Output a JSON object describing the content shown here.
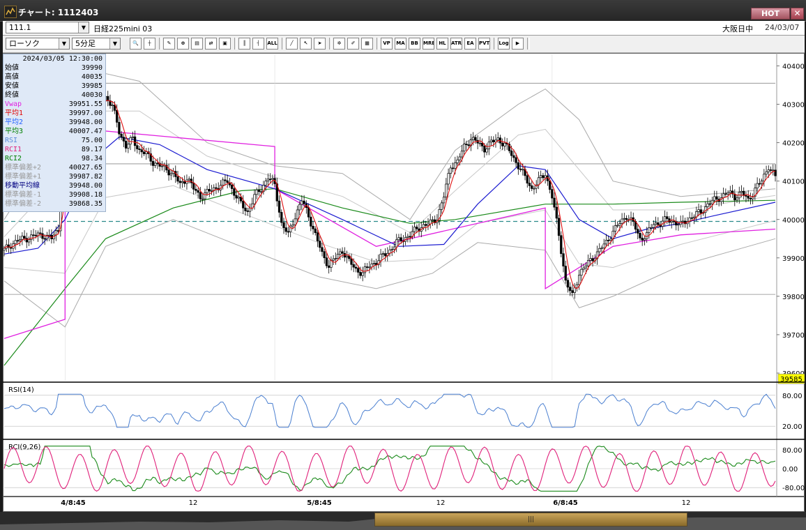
{
  "window": {
    "title": "チャート: 1112403",
    "hot_label": "HOT",
    "close_label": "✕"
  },
  "header": {
    "code": "111.1",
    "instrument": "日経225mini 03",
    "market": "大阪日中",
    "date": "24/03/07",
    "chart_type": "ローソク",
    "interval": "5分足"
  },
  "toolbar": {
    "buttons": [
      {
        "icon": "zoom-icon",
        "label": "🔍"
      },
      {
        "icon": "crosshair-icon",
        "label": "┼"
      },
      {
        "icon": "magnet-draw-icon",
        "label": "✎"
      },
      {
        "icon": "zoom-fit-icon",
        "label": "⊕"
      },
      {
        "icon": "chart-scale-icon",
        "label": "▤"
      },
      {
        "icon": "reset-icon",
        "label": "⇄"
      },
      {
        "icon": "lock-icon",
        "label": "▣"
      },
      {
        "icon": "candle-icon",
        "label": "║"
      },
      {
        "icon": "bar-icon",
        "label": "┤"
      },
      {
        "icon": "all-icon",
        "label": "ALL"
      },
      {
        "icon": "pen-icon",
        "label": "╱"
      },
      {
        "icon": "cursor-icon",
        "label": "↖"
      },
      {
        "icon": "arrow-icon",
        "label": "➤"
      },
      {
        "icon": "settings-icon",
        "label": "✲"
      },
      {
        "icon": "paint-icon",
        "label": "✐"
      },
      {
        "icon": "color-icon",
        "label": "▦"
      },
      {
        "icon": "volume-profile-icon",
        "label": "VP"
      },
      {
        "icon": "ma-icon",
        "label": "MA"
      },
      {
        "icon": "bb-icon",
        "label": "BB"
      },
      {
        "icon": "mre-icon",
        "label": "MRE"
      },
      {
        "icon": "hl-icon",
        "label": "HL"
      },
      {
        "icon": "atr-icon",
        "label": "ATR"
      },
      {
        "icon": "ea-icon",
        "label": "EA"
      },
      {
        "icon": "pvt-icon",
        "label": "PVT"
      },
      {
        "icon": "log-icon",
        "label": "Log"
      },
      {
        "icon": "export-icon",
        "label": "▶"
      }
    ]
  },
  "info_panel": {
    "datetime": "2024/03/05  12:30:00",
    "rows": [
      {
        "label": "始値",
        "value": "39990",
        "color": "#000000"
      },
      {
        "label": "高値",
        "value": "40035",
        "color": "#000000"
      },
      {
        "label": "安値",
        "value": "39985",
        "color": "#000000"
      },
      {
        "label": "終値",
        "value": "40030",
        "color": "#000000"
      },
      {
        "label": "Vwap",
        "value": "39951.55",
        "color": "#e020e0"
      },
      {
        "label": "平均1",
        "value": "39997.00",
        "color": "#e00000"
      },
      {
        "label": "平均2",
        "value": "39948.00",
        "color": "#2060ff"
      },
      {
        "label": "平均3",
        "value": "40007.47",
        "color": "#008000"
      },
      {
        "label": "RSI",
        "value": "75.00",
        "color": "#5a8ad8"
      },
      {
        "label": "RCI1",
        "value": "89.17",
        "color": "#e0207a"
      },
      {
        "label": "RCI2",
        "value": "98.34",
        "color": "#008000"
      },
      {
        "label": "標準偏差+2",
        "value": "40027.65",
        "color": "#999999"
      },
      {
        "label": "標準偏差+1",
        "value": "39987.82",
        "color": "#999999"
      },
      {
        "label": "移動平均線",
        "value": "39948.00",
        "color": "#000080"
      },
      {
        "label": "標準偏差-1",
        "value": "39908.18",
        "color": "#999999"
      },
      {
        "label": "標準偏差-2",
        "value": "39868.35",
        "color": "#999999"
      }
    ]
  },
  "price_axis": {
    "ticks": [
      "40400",
      "40300",
      "40200",
      "40100",
      "40000",
      "39900",
      "39800",
      "39700",
      "39600"
    ],
    "current_price": "39585",
    "current_price_bg": "#ffff00"
  },
  "rsi_panel": {
    "title": "RSI(14)",
    "ticks": [
      "80.00",
      "20.00"
    ]
  },
  "rci_panel": {
    "title": "RCI(9,26)",
    "ticks": [
      "80.00",
      "0.00",
      "-80.00"
    ]
  },
  "time_axis": {
    "labels": [
      "4/8:45",
      "12",
      "5/8:45",
      "12",
      "6/8:45",
      "12"
    ]
  },
  "scrollbar": {
    "grip": "|||"
  },
  "chart_data": {
    "type": "candlestick",
    "title": "",
    "ylim": [
      39580,
      40430
    ],
    "dashed_reference": 39995,
    "horizontal_levels": [
      40355,
      40145,
      39805
    ],
    "sessions": [
      "4/8:45",
      "12",
      "5/8:45",
      "12",
      "6/8:45",
      "12"
    ],
    "close_path": [
      [
        0,
        39920
      ],
      [
        3,
        39935
      ],
      [
        6,
        39945
      ],
      [
        9,
        39950
      ],
      [
        12,
        39955
      ],
      [
        15,
        39960
      ],
      [
        18,
        39958
      ],
      [
        21,
        39950
      ],
      [
        24,
        39975
      ],
      [
        27,
        40200
      ],
      [
        30,
        40260
      ],
      [
        33,
        40290
      ],
      [
        36,
        40300
      ],
      [
        39,
        40280
      ],
      [
        42,
        40300
      ],
      [
        45,
        40320
      ],
      [
        48,
        40295
      ],
      [
        51,
        40230
      ],
      [
        54,
        40190
      ],
      [
        57,
        40210
      ],
      [
        60,
        40180
      ],
      [
        63,
        40170
      ],
      [
        66,
        40150
      ],
      [
        69,
        40140
      ],
      [
        72,
        40130
      ],
      [
        75,
        40120
      ],
      [
        78,
        40090
      ],
      [
        81,
        40110
      ],
      [
        84,
        40080
      ],
      [
        87,
        40060
      ],
      [
        90,
        40070
      ],
      [
        93,
        40080
      ],
      [
        96,
        40090
      ],
      [
        99,
        40100
      ],
      [
        102,
        40070
      ],
      [
        105,
        40040
      ],
      [
        108,
        40020
      ],
      [
        111,
        40060
      ],
      [
        114,
        40080
      ],
      [
        117,
        40110
      ],
      [
        120,
        40090
      ],
      [
        123,
        39990
      ],
      [
        126,
        39960
      ],
      [
        129,
        40010
      ],
      [
        132,
        40050
      ],
      [
        135,
        40010
      ],
      [
        138,
        39960
      ],
      [
        141,
        39910
      ],
      [
        144,
        39880
      ],
      [
        147,
        39900
      ],
      [
        150,
        39920
      ],
      [
        153,
        39890
      ],
      [
        156,
        39870
      ],
      [
        159,
        39860
      ],
      [
        162,
        39880
      ],
      [
        165,
        39890
      ],
      [
        168,
        39905
      ],
      [
        171,
        39920
      ],
      [
        174,
        39940
      ],
      [
        177,
        39950
      ],
      [
        180,
        39960
      ],
      [
        183,
        39975
      ],
      [
        186,
        39985
      ],
      [
        189,
        39990
      ],
      [
        192,
        40005
      ],
      [
        195,
        40060
      ],
      [
        198,
        40140
      ],
      [
        201,
        40150
      ],
      [
        204,
        40190
      ],
      [
        207,
        40210
      ],
      [
        210,
        40200
      ],
      [
        213,
        40185
      ],
      [
        216,
        40200
      ],
      [
        219,
        40210
      ],
      [
        222,
        40195
      ],
      [
        225,
        40170
      ],
      [
        228,
        40140
      ],
      [
        231,
        40110
      ],
      [
        234,
        40080
      ],
      [
        237,
        40100
      ],
      [
        240,
        40120
      ],
      [
        243,
        40060
      ],
      [
        246,
        39960
      ],
      [
        249,
        39840
      ],
      [
        252,
        39800
      ],
      [
        255,
        39860
      ],
      [
        258,
        39880
      ],
      [
        261,
        39900
      ],
      [
        264,
        39920
      ],
      [
        267,
        39940
      ],
      [
        270,
        39970
      ],
      [
        273,
        39990
      ],
      [
        276,
        40010
      ],
      [
        279,
        39990
      ],
      [
        282,
        39950
      ],
      [
        285,
        39960
      ],
      [
        288,
        39990
      ],
      [
        291,
        39990
      ],
      [
        294,
        40000
      ],
      [
        297,
        39995
      ],
      [
        300,
        39985
      ],
      [
        303,
        40000
      ],
      [
        306,
        40010
      ],
      [
        309,
        40020
      ],
      [
        312,
        40040
      ],
      [
        315,
        40050
      ],
      [
        318,
        40060
      ],
      [
        321,
        40070
      ],
      [
        324,
        40060
      ],
      [
        327,
        40070
      ],
      [
        330,
        40050
      ],
      [
        333,
        40080
      ],
      [
        336,
        40100
      ],
      [
        339,
        40140
      ],
      [
        342,
        40110
      ]
    ],
    "vwap_path": [
      [
        0,
        39690
      ],
      [
        27,
        39740
      ],
      [
        27,
        40240
      ],
      [
        120,
        40190
      ],
      [
        120,
        40080
      ],
      [
        165,
        39930
      ],
      [
        240,
        40030
      ],
      [
        240,
        39820
      ],
      [
        270,
        39930
      ],
      [
        300,
        39960
      ],
      [
        342,
        39975
      ]
    ],
    "ma2_path": [
      [
        0,
        39910
      ],
      [
        15,
        39925
      ],
      [
        27,
        40000
      ],
      [
        40,
        40160
      ],
      [
        51,
        40215
      ],
      [
        69,
        40195
      ],
      [
        90,
        40130
      ],
      [
        120,
        40080
      ],
      [
        150,
        40000
      ],
      [
        175,
        39930
      ],
      [
        195,
        39935
      ],
      [
        210,
        40040
      ],
      [
        228,
        40140
      ],
      [
        240,
        40130
      ],
      [
        255,
        40000
      ],
      [
        270,
        39950
      ],
      [
        285,
        39975
      ],
      [
        300,
        39990
      ],
      [
        315,
        40010
      ],
      [
        342,
        40045
      ]
    ],
    "ma3_path": [
      [
        0,
        39620
      ],
      [
        27,
        39820
      ],
      [
        45,
        39950
      ],
      [
        75,
        40030
      ],
      [
        105,
        40075
      ],
      [
        120,
        40080
      ],
      [
        150,
        40030
      ],
      [
        180,
        39990
      ],
      [
        200,
        40000
      ],
      [
        240,
        40040
      ],
      [
        270,
        40040
      ],
      [
        300,
        40045
      ],
      [
        342,
        40050
      ]
    ],
    "bb_upper_path": [
      [
        0,
        40000
      ],
      [
        27,
        40250
      ],
      [
        45,
        40380
      ],
      [
        60,
        40360
      ],
      [
        90,
        40200
      ],
      [
        120,
        40140
      ],
      [
        150,
        40120
      ],
      [
        180,
        40000
      ],
      [
        200,
        40180
      ],
      [
        228,
        40300
      ],
      [
        240,
        40340
      ],
      [
        255,
        40260
      ],
      [
        270,
        40100
      ],
      [
        300,
        40060
      ],
      [
        342,
        40080
      ]
    ],
    "bb_lower_path": [
      [
        0,
        39840
      ],
      [
        27,
        39720
      ],
      [
        45,
        39930
      ],
      [
        75,
        40000
      ],
      [
        105,
        39930
      ],
      [
        140,
        39850
      ],
      [
        165,
        39820
      ],
      [
        190,
        39860
      ],
      [
        210,
        39940
      ],
      [
        240,
        39920
      ],
      [
        255,
        39770
      ],
      [
        270,
        39800
      ],
      [
        300,
        39880
      ],
      [
        342,
        39950
      ]
    ]
  }
}
